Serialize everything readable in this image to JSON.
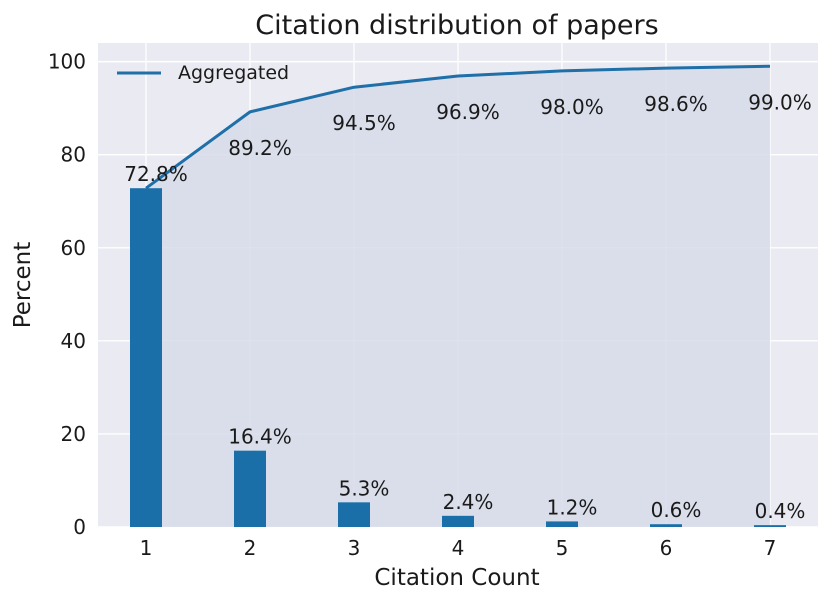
{
  "colors": {
    "plot_background": "#eaeaf2",
    "grid": "#ffffff",
    "bar": "#1a6fa8",
    "line": "#1f6fa8",
    "area_fill": "#d6dce9"
  },
  "chart_data": {
    "type": "bar",
    "title": "Citation distribution of papers",
    "xlabel": "Citation Count",
    "ylabel": "Percent",
    "categories": [
      "1",
      "2",
      "3",
      "4",
      "5",
      "6",
      "7"
    ],
    "ylim": [
      0,
      104
    ],
    "yticks": [
      0,
      20,
      40,
      60,
      80,
      100
    ],
    "grid": true,
    "legend_position": "top-left",
    "series": [
      {
        "type": "bar",
        "values": [
          72.8,
          16.4,
          5.3,
          2.4,
          1.2,
          0.6,
          0.4
        ],
        "labels": [
          "72.8%",
          "16.4%",
          "5.3%",
          "2.4%",
          "1.2%",
          "0.6%",
          "0.4%"
        ]
      },
      {
        "type": "line",
        "name": "Aggregated",
        "values": [
          72.8,
          89.2,
          94.5,
          96.9,
          98.0,
          98.6,
          99.0
        ],
        "labels": [
          "72.8%",
          "89.2%",
          "94.5%",
          "96.9%",
          "98.0%",
          "98.6%",
          "99.0%"
        ],
        "area_fill": true
      }
    ]
  }
}
